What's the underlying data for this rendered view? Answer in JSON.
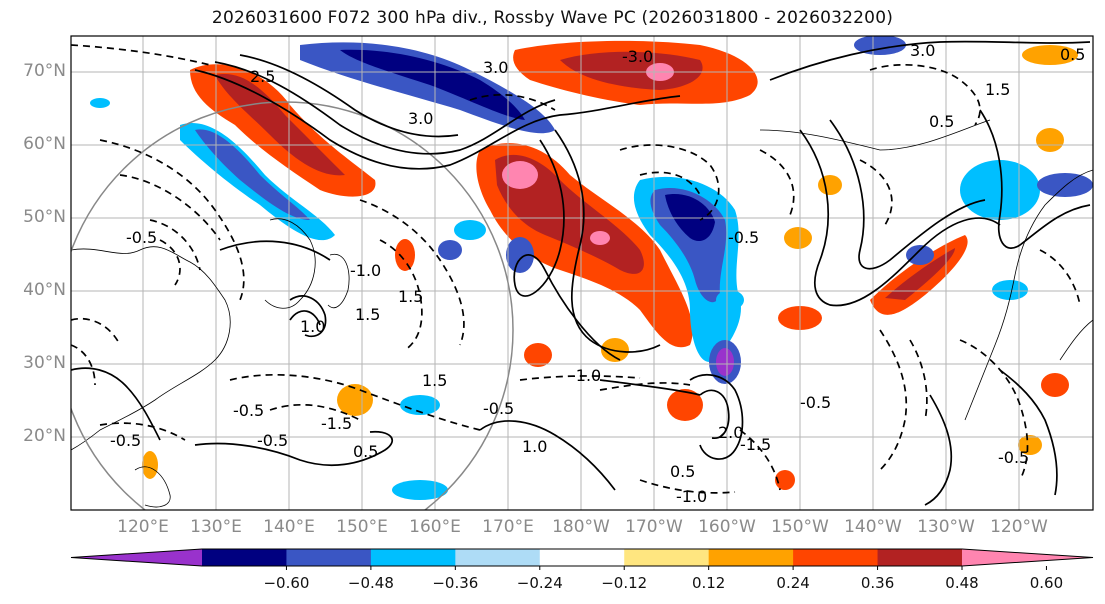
{
  "title": "2026031600 F072 300 hPa div., Rossby Wave PC (2026031800 - 2026032200)",
  "map": {
    "lat_labels": [
      "70°N",
      "60°N",
      "50°N",
      "40°N",
      "30°N",
      "20°N"
    ],
    "lon_labels": [
      "120°E",
      "130°E",
      "140°E",
      "150°E",
      "160°E",
      "170°E",
      "180°W",
      "170°W",
      "160°W",
      "150°W",
      "140°W",
      "130°W",
      "120°W"
    ],
    "contour_labels": [
      "3.0",
      "2.5",
      "3.0",
      "-3.0",
      "3.0",
      "1.5",
      "0.5",
      "-0.5",
      "1.5",
      "1.5",
      "1.0",
      "-1.0",
      "-0.5",
      "-0.5",
      "-1.5",
      "0.5",
      "-0.5",
      "-0.5",
      "2.0",
      "-1.0",
      "-1.5",
      "0.5",
      "-0.5",
      "1.0",
      "1.5",
      "-1.0",
      "-0.5",
      "-0.5",
      "0.5"
    ]
  },
  "colorbar": {
    "colors": [
      "#9932cc",
      "#000080",
      "#3a56c4",
      "#00bfff",
      "#aedcf6",
      "#ffffff",
      "#ffe680",
      "#ffa200",
      "#ff4500",
      "#b22222",
      "#ff85b0"
    ],
    "tick_labels": [
      "−0.60",
      "−0.48",
      "−0.36",
      "−0.24",
      "−0.12",
      "0.12",
      "0.24",
      "0.36",
      "0.48",
      "0.60"
    ]
  }
}
